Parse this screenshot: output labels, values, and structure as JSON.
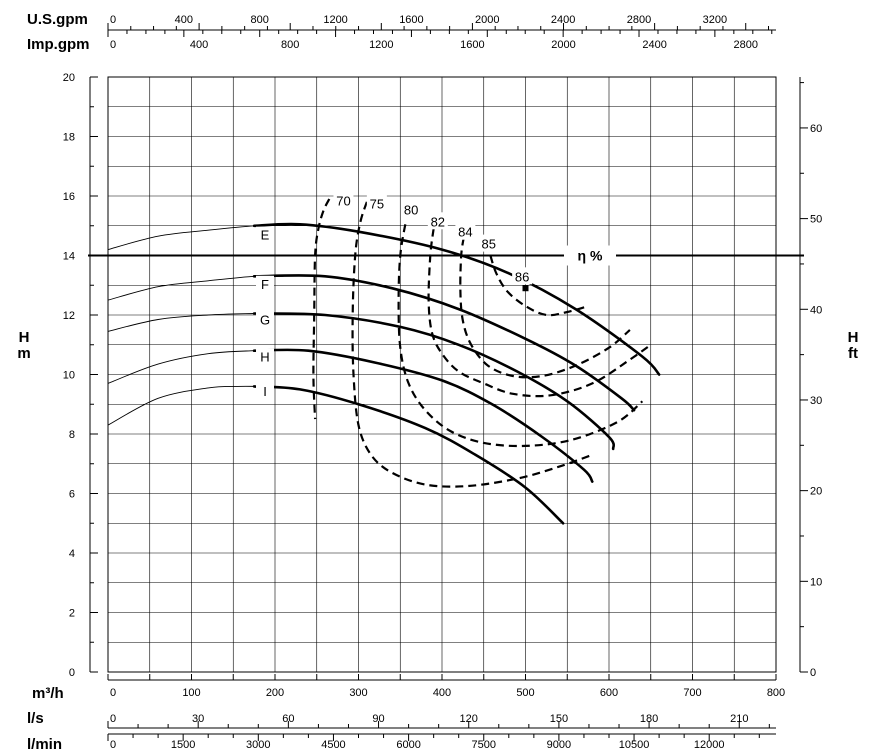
{
  "chart_data": {
    "type": "line",
    "x_axis": {
      "unit": "m³/h",
      "range": [
        0,
        800
      ],
      "ticks": [
        0,
        100,
        200,
        300,
        400,
        500,
        600,
        700,
        800
      ]
    },
    "y_axis_left": {
      "unit": "H",
      "unit2": "m",
      "range": [
        0,
        20
      ],
      "ticks": [
        0,
        2,
        4,
        6,
        8,
        10,
        12,
        14,
        16,
        18,
        20
      ]
    },
    "y_axis_right": {
      "unit": "H",
      "unit2": "ft",
      "ticks": [
        0,
        10,
        20,
        30,
        40,
        50,
        60
      ]
    },
    "top_axes": [
      {
        "unit": "U.S.gpm",
        "ticks": [
          0,
          400,
          800,
          1200,
          1600,
          2000,
          2400,
          2800,
          3200
        ]
      },
      {
        "unit": "Imp.gpm",
        "ticks": [
          0,
          400,
          800,
          1200,
          1600,
          2000,
          2400,
          2800
        ]
      }
    ],
    "bottom_axes": [
      {
        "unit": "l/s",
        "ticks": [
          0,
          30,
          60,
          90,
          120,
          150,
          180,
          210
        ]
      },
      {
        "unit": "l/min",
        "ticks": [
          0,
          1500,
          3000,
          4500,
          6000,
          7500,
          9000,
          10500,
          12000
        ]
      }
    ],
    "grid": true,
    "efficiency_label": "η %",
    "efficiency_reference_head": 14,
    "series": [
      {
        "name": "E",
        "label_point": [
          200,
          14.7
        ],
        "thin": [
          [
            0,
            14.2
          ],
          [
            60,
            14.65
          ],
          [
            120,
            14.85
          ],
          [
            175,
            15.0
          ],
          [
            215,
            15.05
          ]
        ],
        "thick": [
          [
            175,
            15.0
          ],
          [
            230,
            15.05
          ],
          [
            300,
            14.8
          ],
          [
            400,
            14.2
          ],
          [
            480,
            13.4
          ],
          [
            560,
            12.2
          ],
          [
            640,
            10.6
          ],
          [
            660,
            10.0
          ]
        ]
      },
      {
        "name": "F",
        "label_point": [
          200,
          13.05
        ],
        "thin": [
          [
            0,
            12.5
          ],
          [
            60,
            12.95
          ],
          [
            120,
            13.15
          ],
          [
            175,
            13.3
          ],
          [
            210,
            13.3
          ]
        ],
        "thick": [
          [
            175,
            13.3
          ],
          [
            260,
            13.3
          ],
          [
            340,
            12.9
          ],
          [
            420,
            12.2
          ],
          [
            500,
            11.2
          ],
          [
            560,
            10.3
          ],
          [
            615,
            9.2
          ],
          [
            630,
            8.8
          ]
        ]
      },
      {
        "name": "G",
        "label_point": [
          200,
          11.85
        ],
        "thin": [
          [
            0,
            11.45
          ],
          [
            60,
            11.85
          ],
          [
            120,
            12.0
          ],
          [
            175,
            12.05
          ],
          [
            200,
            12.05
          ]
        ],
        "thick": [
          [
            175,
            12.05
          ],
          [
            260,
            12.0
          ],
          [
            350,
            11.6
          ],
          [
            420,
            11.0
          ],
          [
            490,
            10.1
          ],
          [
            550,
            9.1
          ],
          [
            600,
            7.9
          ],
          [
            605,
            7.5
          ]
        ]
      },
      {
        "name": "H",
        "label_point": [
          200,
          10.6
        ],
        "thin": [
          [
            0,
            9.7
          ],
          [
            60,
            10.35
          ],
          [
            120,
            10.7
          ],
          [
            175,
            10.8
          ],
          [
            195,
            10.8
          ]
        ],
        "thick": [
          [
            175,
            10.8
          ],
          [
            240,
            10.8
          ],
          [
            320,
            10.4
          ],
          [
            400,
            9.8
          ],
          [
            460,
            9.0
          ],
          [
            520,
            7.9
          ],
          [
            570,
            6.8
          ],
          [
            580,
            6.4
          ]
        ]
      },
      {
        "name": "I",
        "label_point": [
          200,
          9.45
        ],
        "thin": [
          [
            0,
            8.3
          ],
          [
            60,
            9.2
          ],
          [
            120,
            9.55
          ],
          [
            155,
            9.6
          ],
          [
            180,
            9.6
          ]
        ],
        "thick": [
          [
            175,
            9.6
          ],
          [
            230,
            9.5
          ],
          [
            300,
            9.0
          ],
          [
            380,
            8.2
          ],
          [
            440,
            7.3
          ],
          [
            500,
            6.2
          ],
          [
            545,
            5.0
          ]
        ]
      }
    ],
    "efficiency_curves": [
      {
        "name": "70",
        "label_point": [
          282,
          15.85
        ],
        "points": [
          [
            265,
            15.9
          ],
          [
            258,
            15.5
          ],
          [
            252,
            14.9
          ],
          [
            248,
            14.0
          ],
          [
            247,
            12.0
          ],
          [
            246,
            10.0
          ],
          [
            248,
            8.5
          ]
        ]
      },
      {
        "name": "75",
        "label_point": [
          322,
          15.75
        ],
        "points": [
          [
            310,
            15.8
          ],
          [
            302,
            15.1
          ],
          [
            296,
            14.0
          ],
          [
            293,
            12.0
          ],
          [
            294,
            10.0
          ],
          [
            300,
            8.3
          ],
          [
            315,
            7.3
          ],
          [
            340,
            6.7
          ],
          [
            380,
            6.3
          ],
          [
            430,
            6.25
          ],
          [
            490,
            6.5
          ],
          [
            540,
            6.9
          ],
          [
            580,
            7.3
          ]
        ]
      },
      {
        "name": "80",
        "label_point": [
          363,
          15.55
        ],
        "points": [
          [
            356,
            15.05
          ],
          [
            350,
            14.0
          ],
          [
            348,
            12.5
          ],
          [
            350,
            10.9
          ],
          [
            360,
            9.7
          ],
          [
            380,
            8.8
          ],
          [
            410,
            8.1
          ],
          [
            450,
            7.7
          ],
          [
            500,
            7.6
          ],
          [
            555,
            7.8
          ],
          [
            610,
            8.4
          ],
          [
            640,
            9.1
          ]
        ]
      },
      {
        "name": "82",
        "label_point": [
          395,
          15.15
        ],
        "points": [
          [
            390,
            14.9
          ],
          [
            386,
            14.0
          ],
          [
            384,
            12.5
          ],
          [
            388,
            11.4
          ],
          [
            400,
            10.7
          ],
          [
            420,
            10.1
          ],
          [
            450,
            9.7
          ],
          [
            485,
            9.35
          ],
          [
            530,
            9.3
          ],
          [
            580,
            9.7
          ],
          [
            625,
            10.5
          ],
          [
            650,
            11.0
          ]
        ]
      },
      {
        "name": "84",
        "label_point": [
          428,
          14.8
        ],
        "points": [
          [
            426,
            14.6
          ],
          [
            423,
            14.0
          ],
          [
            422,
            12.8
          ],
          [
            425,
            11.8
          ],
          [
            435,
            11.0
          ],
          [
            455,
            10.3
          ],
          [
            485,
            9.95
          ],
          [
            520,
            9.95
          ],
          [
            560,
            10.3
          ],
          [
            600,
            10.9
          ],
          [
            625,
            11.5
          ]
        ]
      },
      {
        "name": "85",
        "label_point": [
          456,
          14.4
        ],
        "points": [
          [
            458,
            14.0
          ],
          [
            465,
            13.4
          ],
          [
            478,
            12.8
          ],
          [
            500,
            12.3
          ],
          [
            525,
            12.0
          ],
          [
            550,
            12.1
          ],
          [
            575,
            12.3
          ]
        ]
      }
    ],
    "efficiency_points": [
      {
        "name": "86",
        "point": [
          500,
          12.9
        ],
        "label_point": [
          490,
          13.3
        ]
      }
    ]
  }
}
